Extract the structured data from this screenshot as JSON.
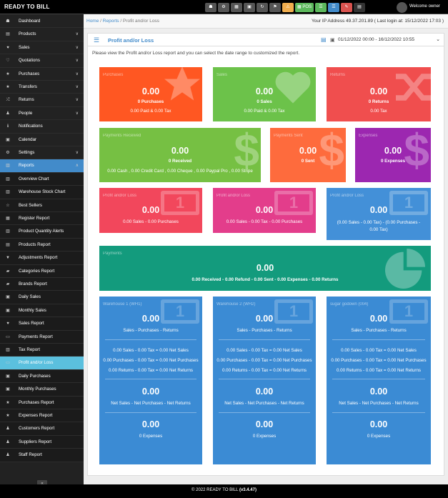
{
  "app": {
    "brand": "READY TO BILL",
    "welcome": "Welcome owner"
  },
  "toolbar": [
    {
      "name": "dashboard-button",
      "glyph": "☗",
      "color": "#555",
      "w": 16
    },
    {
      "name": "settings-button",
      "glyph": "⚙",
      "color": "#555",
      "w": 16
    },
    {
      "name": "calculator-button",
      "glyph": "▦",
      "color": "#555",
      "w": 16
    },
    {
      "name": "calendar-button",
      "glyph": "▣",
      "color": "#555",
      "w": 16
    },
    {
      "name": "refresh-button",
      "glyph": "↻",
      "color": "#555",
      "w": 16
    },
    {
      "name": "language-button",
      "glyph": "⚑",
      "color": "#555",
      "w": 16
    },
    {
      "name": "alerts-button",
      "glyph": "⚠",
      "color": "#f0ad4e",
      "w": 16
    },
    {
      "name": "pos-button",
      "glyph": "▦ POS",
      "color": "#5cb85c",
      "w": 26
    },
    {
      "name": "quick-add-button",
      "glyph": "☰",
      "color": "#5cb85c",
      "w": 16
    },
    {
      "name": "list-button",
      "glyph": "☰",
      "color": "#428bca",
      "w": 16
    },
    {
      "name": "clear-cache-button",
      "glyph": "✎",
      "color": "#d9534f",
      "w": 16
    },
    {
      "name": "apps-button",
      "glyph": "▤",
      "color": "#333",
      "w": 16
    }
  ],
  "sidebar": [
    {
      "icon": "☗",
      "label": "Dashboard",
      "chev": "",
      "type": ""
    },
    {
      "icon": "▤",
      "label": "Products",
      "chev": "∨",
      "type": ""
    },
    {
      "icon": "♥",
      "label": "Sales",
      "chev": "∨",
      "type": ""
    },
    {
      "icon": "♡",
      "label": "Quotations",
      "chev": "∨",
      "type": ""
    },
    {
      "icon": "★",
      "label": "Purchases",
      "chev": "∨",
      "type": ""
    },
    {
      "icon": "★",
      "label": "Transfers",
      "chev": "∨",
      "type": ""
    },
    {
      "icon": "⤮",
      "label": "Returns",
      "chev": "∨",
      "type": ""
    },
    {
      "icon": "♟",
      "label": "People",
      "chev": "∨",
      "type": ""
    },
    {
      "icon": "ℹ",
      "label": "Notifications",
      "chev": "",
      "type": ""
    },
    {
      "icon": "▣",
      "label": "Calendar",
      "chev": "",
      "type": ""
    },
    {
      "icon": "⚙",
      "label": "Settings",
      "chev": "∨",
      "type": ""
    },
    {
      "icon": "▥",
      "label": "Reports",
      "chev": "∧",
      "type": "active"
    },
    {
      "icon": "▥",
      "label": "Overview Chart",
      "chev": "",
      "type": "sub"
    },
    {
      "icon": "▥",
      "label": "Warehouse Stock Chart",
      "chev": "",
      "type": "sub"
    },
    {
      "icon": "☆",
      "label": "Best Sellers",
      "chev": "",
      "type": "sub"
    },
    {
      "icon": "▦",
      "label": "Register Report",
      "chev": "",
      "type": "sub"
    },
    {
      "icon": "▥",
      "label": "Product Quantity Alerts",
      "chev": "",
      "type": "sub"
    },
    {
      "icon": "▤",
      "label": "Products Report",
      "chev": "",
      "type": "sub"
    },
    {
      "icon": "▼",
      "label": "Adjustments Report",
      "chev": "",
      "type": "sub"
    },
    {
      "icon": "▰",
      "label": "Categories Report",
      "chev": "",
      "type": "sub"
    },
    {
      "icon": "▰",
      "label": "Brands Report",
      "chev": "",
      "type": "sub"
    },
    {
      "icon": "▣",
      "label": "Daily Sales",
      "chev": "",
      "type": "sub"
    },
    {
      "icon": "▣",
      "label": "Monthly Sales",
      "chev": "",
      "type": "sub"
    },
    {
      "icon": "♥",
      "label": "Sales Report",
      "chev": "",
      "type": "sub"
    },
    {
      "icon": "▭",
      "label": "Payments Report",
      "chev": "",
      "type": "sub"
    },
    {
      "icon": "▥",
      "label": "Tax Report",
      "chev": "",
      "type": "sub"
    },
    {
      "icon": "▭",
      "label": "Profit and/or Loss",
      "chev": "",
      "type": "sel"
    },
    {
      "icon": "▣",
      "label": "Daily Purchases",
      "chev": "",
      "type": "sub"
    },
    {
      "icon": "▣",
      "label": "Monthly Purchases",
      "chev": "",
      "type": "sub"
    },
    {
      "icon": "★",
      "label": "Purchases Report",
      "chev": "",
      "type": "sub"
    },
    {
      "icon": "★",
      "label": "Expenses Report",
      "chev": "",
      "type": "sub"
    },
    {
      "icon": "♟",
      "label": "Customers Report",
      "chev": "",
      "type": "sub"
    },
    {
      "icon": "♟",
      "label": "Suppliers Report",
      "chev": "",
      "type": "sub"
    },
    {
      "icon": "♟",
      "label": "Staff Report",
      "chev": "",
      "type": "sub"
    }
  ],
  "collapse_glyph": "«",
  "breadcrumb": {
    "home": "Home",
    "reports": "Reports",
    "current": "Profit and/or Loss"
  },
  "ip_line": "Your IP Address 49.37.201.89 ( Last login at: 15/12/2022 17:03 )",
  "panel": {
    "title": "Profit and/or Loss",
    "date_range": "01/12/2022 00:00 - 16/12/2022 10:55",
    "intro": "Please view the Profit and/or Loss report and you can select the date range to customized the report."
  },
  "colors": {
    "orange": "#ff5722",
    "green": "#6cc24a",
    "red": "#f04e4e",
    "lime": "#76c043",
    "orange2": "#fe6b3d",
    "purple": "#9c27b0",
    "pink": "#f2475c",
    "magenta": "#e33d8b",
    "blue": "#4390d8",
    "teal": "#139b7d",
    "wblue": "#3b8bd4"
  },
  "cards": {
    "purchases": {
      "title": "Purchases",
      "value": "0.00",
      "sub": "0 Purchases",
      "detail": "0.00 Paid & 0.00 Tax"
    },
    "sales": {
      "title": "Sales",
      "value": "0.00",
      "sub": "0 Sales",
      "detail": "0.00 Paid & 0.00 Tax"
    },
    "returns": {
      "title": "Returns",
      "value": "0.00",
      "sub": "0 Returns",
      "detail": "0.00 Tax"
    },
    "payments_received": {
      "title": "Payments Received",
      "value": "0.00",
      "sub": "0 Received",
      "detail": "0.00 Cash , 0.00 Credit Card , 0.00 Cheque , 0.00 Paypal Pro , 0.00 Stripe"
    },
    "payments_sent": {
      "title": "Payments Sent",
      "value": "0.00",
      "sub": "0 Sent"
    },
    "expenses": {
      "title": "Expenses",
      "value": "0.00",
      "sub": "0 Expenses"
    },
    "pl1": {
      "title": "Profit and/or Loss",
      "value": "0.00",
      "detail": "0.00 Sales - 0.00 Purchases"
    },
    "pl2": {
      "title": "Profit and/or Loss",
      "value": "0.00",
      "detail": "0.00 Sales - 0.00 Tax - 0.00 Purchases"
    },
    "pl3": {
      "title": "Profit and/or Loss",
      "value": "0.00",
      "detail": "(0.00 Sales - 0.00 Tax) - (0.00 Purchases - 0.00 Tax)"
    },
    "payments": {
      "title": "Payments",
      "value": "0.00",
      "detail": "0.00 Received - 0.00 Refund - 0.00 Sent - 0.00 Expenses - 0.00 Returns"
    }
  },
  "warehouses": [
    {
      "title": "Warehouse 1 (WH1)",
      "value": "0.00",
      "formula": "Sales - Purchases - Returns",
      "l1": "0.00 Sales - 0.00 Tax = 0.00 Net Sales",
      "l2": "0.00 Purchases - 0.00 Tax = 0.00 Net Purchases",
      "l3": "0.00 Returns - 0.00 Tax = 0.00 Net Returns",
      "net_value": "0.00",
      "net_formula": "Net Sales - Net Purchases - Net Returns",
      "exp_value": "0.00",
      "exp_label": "0 Expenses"
    },
    {
      "title": "Warehouse 2 (WH2)",
      "value": "0.00",
      "formula": "Sales - Purchases - Returns",
      "l1": "0.00 Sales - 0.00 Tax = 0.00 Net Sales",
      "l2": "0.00 Purchases - 0.00 Tax = 0.00 Net Purchases",
      "l3": "0.00 Returns - 0.00 Tax = 0.00 Net Returns",
      "net_value": "0.00",
      "net_formula": "Net Sales - Net Purchases - Net Returns",
      "exp_value": "0.00",
      "exp_label": "0 Expenses"
    },
    {
      "title": "sugar godown (004)",
      "value": "0.00",
      "formula": "Sales - Purchases - Returns",
      "l1": "0.00 Sales - 0.00 Tax = 0.00 Net Sales",
      "l2": "0.00 Purchases - 0.00 Tax = 0.00 Net Purchases",
      "l3": "0.00 Returns - 0.00 Tax = 0.00 Net Returns",
      "net_value": "0.00",
      "net_formula": "Net Sales - Net Purchases - Net Returns",
      "exp_value": "0.00",
      "exp_label": "0 Expenses"
    }
  ],
  "footer": {
    "text": "© 2022 READY TO BILL",
    "version": "(v3.4.47)"
  }
}
